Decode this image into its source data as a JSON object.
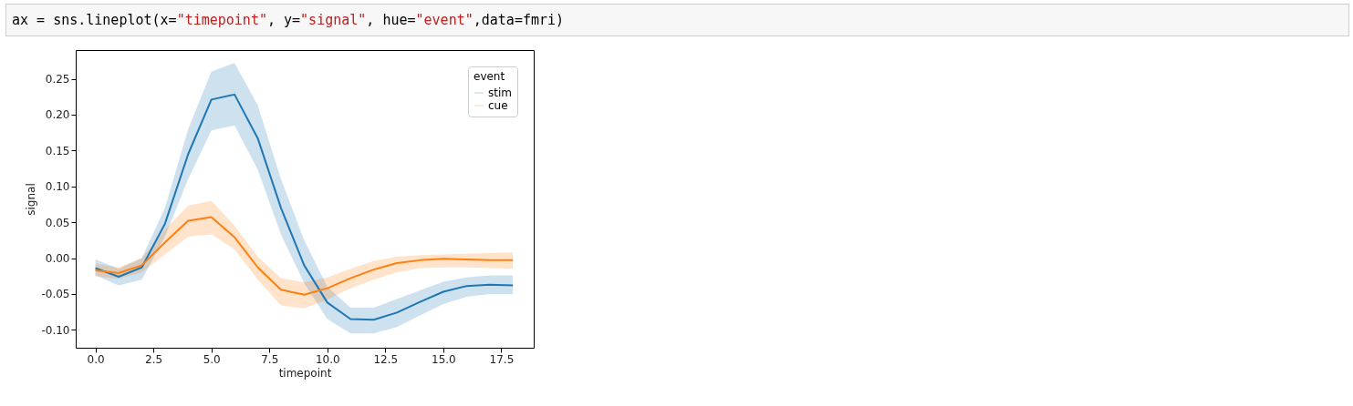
{
  "chart_data": {
    "type": "line",
    "xlabel": "timepoint",
    "ylabel": "signal",
    "legend_title": "event",
    "legend": "top right",
    "grid": false,
    "annotations": [
      "ax = sns.lineplot(x=\"timepoint\", y=\"signal\", hue=\"event\",data=fmri)"
    ],
    "x": [
      0,
      1,
      2,
      3,
      4,
      5,
      6,
      7,
      8,
      9,
      10,
      11,
      12,
      13,
      14,
      15,
      16,
      17,
      18
    ],
    "xlim": [
      -0.85,
      18.9
    ],
    "xticks": [
      {
        "value": 0,
        "label": "0.0"
      },
      2.5,
      {
        "value": 5,
        "label": "5.0"
      },
      7.5,
      {
        "value": 10,
        "label": "10.0"
      },
      12.5,
      {
        "value": 15,
        "label": "15.0"
      },
      17.5
    ],
    "ylim": [
      -0.125,
      0.29
    ],
    "yticks": [
      {
        "value": -0.1,
        "label": "-0.10"
      },
      -0.05,
      {
        "value": 0,
        "label": "0.00"
      },
      0.05,
      {
        "value": 0.1,
        "label": "0.10"
      },
      0.15,
      {
        "value": 0.2,
        "label": "0.20"
      },
      0.25
    ],
    "series": [
      {
        "name": "stim",
        "color": "#1f77b4",
        "values": [
          -0.014,
          -0.026,
          -0.013,
          0.048,
          0.145,
          0.221,
          0.228,
          0.167,
          0.07,
          -0.01,
          -0.062,
          -0.085,
          -0.086,
          -0.076,
          -0.061,
          -0.047,
          -0.039,
          -0.037,
          -0.038
        ],
        "lower": [
          -0.024,
          -0.038,
          -0.03,
          0.03,
          0.11,
          0.178,
          0.185,
          0.123,
          0.033,
          -0.035,
          -0.085,
          -0.105,
          -0.105,
          -0.096,
          -0.08,
          -0.064,
          -0.054,
          -0.05,
          -0.05
        ],
        "upper": [
          -0.002,
          -0.015,
          0.0,
          0.07,
          0.18,
          0.26,
          0.272,
          0.213,
          0.11,
          0.025,
          -0.04,
          -0.069,
          -0.069,
          -0.057,
          -0.045,
          -0.033,
          -0.027,
          -0.024,
          -0.024
        ]
      },
      {
        "name": "cue",
        "color": "#ff7f0e",
        "values": [
          -0.017,
          -0.021,
          -0.01,
          0.022,
          0.052,
          0.057,
          0.029,
          -0.013,
          -0.044,
          -0.051,
          -0.042,
          -0.028,
          -0.016,
          -0.007,
          -0.003,
          -0.001,
          -0.002,
          -0.003,
          -0.003
        ],
        "lower": [
          -0.025,
          -0.029,
          -0.02,
          0.005,
          0.03,
          0.033,
          0.012,
          -0.03,
          -0.066,
          -0.07,
          -0.058,
          -0.042,
          -0.03,
          -0.02,
          -0.014,
          -0.013,
          -0.013,
          -0.014,
          -0.015
        ],
        "upper": [
          -0.008,
          -0.013,
          0.0,
          0.04,
          0.073,
          0.08,
          0.045,
          0.002,
          -0.028,
          -0.034,
          -0.027,
          -0.015,
          -0.004,
          0.002,
          0.004,
          0.005,
          0.006,
          0.007,
          0.008
        ]
      }
    ]
  }
}
